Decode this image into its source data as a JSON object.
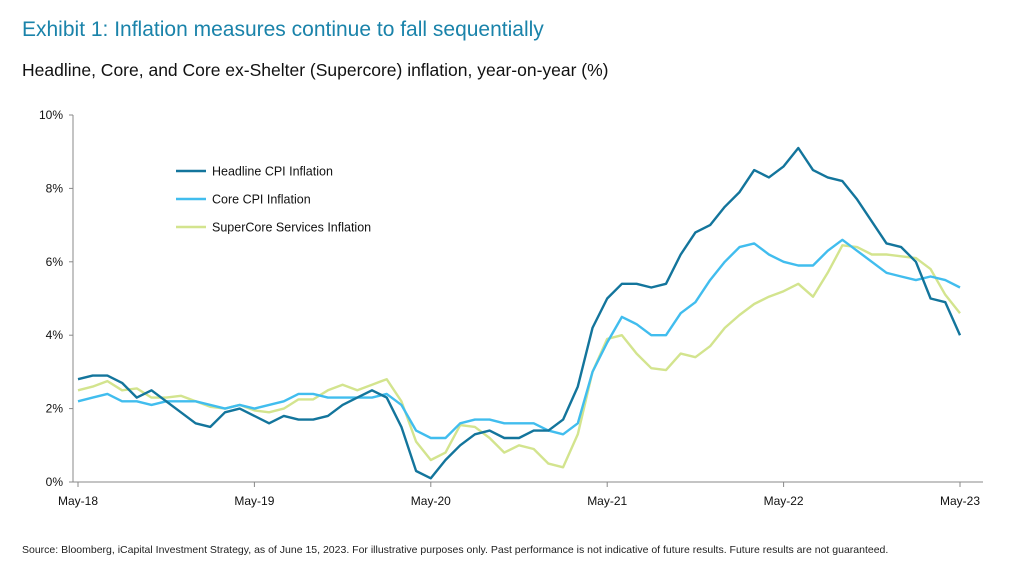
{
  "header": {
    "title": "Exhibit 1: Inflation measures continue to fall sequentially",
    "subtitle": "Headline, Core, and Core ex-Shelter (Supercore) inflation, year-on-year (%)"
  },
  "footer": {
    "source": "Source: Bloomberg, iCapital Investment Strategy, as of June 15, 2023. For illustrative purposes only. Past performance is not indicative of future results. Future results are not guaranteed."
  },
  "chart_data": {
    "type": "line",
    "x_start": "May-18",
    "x_end": "May-23",
    "frequency": "monthly",
    "x_tick_labels": [
      "May-18",
      "May-19",
      "May-20",
      "May-21",
      "May-22",
      "May-23"
    ],
    "y_tick_labels": [
      "0%",
      "2%",
      "4%",
      "6%",
      "8%",
      "10%"
    ],
    "ylim": [
      0,
      10
    ],
    "grid": false,
    "legend_position": "upper-left",
    "series": [
      {
        "name": "Headline CPI Inflation",
        "color": "#13759c",
        "values": [
          2.8,
          2.9,
          2.9,
          2.7,
          2.3,
          2.5,
          2.2,
          1.9,
          1.6,
          1.5,
          1.9,
          2.0,
          1.8,
          1.6,
          1.8,
          1.7,
          1.7,
          1.8,
          2.1,
          2.3,
          2.5,
          2.3,
          1.5,
          0.3,
          0.1,
          0.6,
          1.0,
          1.3,
          1.4,
          1.2,
          1.2,
          1.4,
          1.4,
          1.7,
          2.6,
          4.2,
          5.0,
          5.4,
          5.4,
          5.3,
          5.4,
          6.2,
          6.8,
          7.0,
          7.5,
          7.9,
          8.5,
          8.3,
          8.6,
          9.1,
          8.5,
          8.3,
          8.2,
          7.7,
          7.1,
          6.5,
          6.4,
          6.0,
          5.0,
          4.9,
          4.0
        ]
      },
      {
        "name": "Core CPI Inflation",
        "color": "#41bdee",
        "values": [
          2.2,
          2.3,
          2.4,
          2.2,
          2.2,
          2.1,
          2.2,
          2.2,
          2.2,
          2.1,
          2.0,
          2.1,
          2.0,
          2.1,
          2.2,
          2.4,
          2.4,
          2.3,
          2.3,
          2.3,
          2.3,
          2.4,
          2.1,
          1.4,
          1.2,
          1.2,
          1.6,
          1.7,
          1.7,
          1.6,
          1.6,
          1.6,
          1.4,
          1.3,
          1.6,
          3.0,
          3.8,
          4.5,
          4.3,
          4.0,
          4.0,
          4.6,
          4.9,
          5.5,
          6.0,
          6.4,
          6.5,
          6.2,
          6.0,
          5.9,
          5.9,
          6.3,
          6.6,
          6.3,
          6.0,
          5.7,
          5.6,
          5.5,
          5.6,
          5.5,
          5.3
        ]
      },
      {
        "name": "SuperCore Services Inflation",
        "color": "#d3e48e",
        "values": [
          2.5,
          2.6,
          2.75,
          2.5,
          2.55,
          2.3,
          2.3,
          2.35,
          2.2,
          2.05,
          2.0,
          2.1,
          1.95,
          1.9,
          2.0,
          2.25,
          2.25,
          2.5,
          2.65,
          2.5,
          2.65,
          2.8,
          2.2,
          1.1,
          0.6,
          0.8,
          1.55,
          1.5,
          1.2,
          0.8,
          1.0,
          0.9,
          0.5,
          0.4,
          1.3,
          3.0,
          3.9,
          4.0,
          3.5,
          3.1,
          3.05,
          3.5,
          3.4,
          3.7,
          4.2,
          4.55,
          4.85,
          5.05,
          5.2,
          5.4,
          5.05,
          5.7,
          6.45,
          6.4,
          6.2,
          6.2,
          6.15,
          6.1,
          5.8,
          5.1,
          4.6
        ]
      }
    ]
  }
}
